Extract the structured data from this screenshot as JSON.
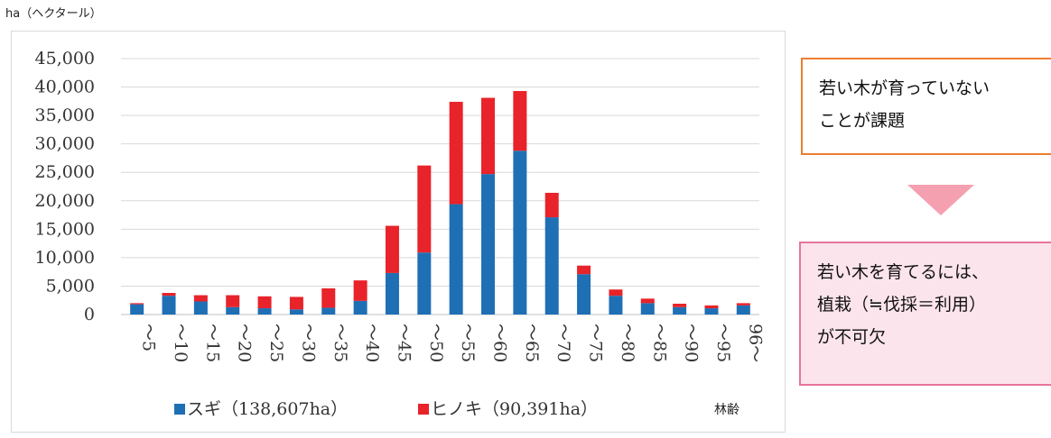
{
  "unit_label": "ha（ヘクタール）",
  "callout_top": {
    "lines": [
      "若い木が育っていない",
      "ことが課題"
    ],
    "border_color": "#ed7d31"
  },
  "callout_bottom": {
    "lines": [
      "若い木を育てるには、",
      "植栽（≒伐採＝利用）",
      "が不可欠"
    ],
    "border_color": "#e8749a",
    "background": "#fce4ec"
  },
  "arrow": {
    "icon": "down-triangle-icon",
    "color": "#f5a0b0"
  },
  "chart_data": {
    "type": "bar",
    "stacked": true,
    "categories": [
      "～5",
      "～10",
      "～15",
      "～20",
      "～25",
      "～30",
      "～35",
      "～40",
      "～45",
      "～50",
      "～55",
      "～60",
      "～65",
      "～70",
      "～75",
      "～80",
      "～85",
      "～90",
      "～95",
      "96～"
    ],
    "series": [
      {
        "name": "スギ（138,607ha）",
        "color": "#1f6fb5",
        "values": [
          1800,
          3300,
          2300,
          1300,
          1100,
          900,
          1200,
          2400,
          7300,
          10900,
          19400,
          24700,
          28800,
          17100,
          7100,
          3300,
          2000,
          1300,
          1100,
          1600
        ]
      },
      {
        "name": "ヒノキ（90,391ha）",
        "color": "#e8232a",
        "values": [
          200,
          500,
          1100,
          2100,
          2100,
          2200,
          3400,
          3600,
          8300,
          15300,
          18000,
          13400,
          10500,
          4300,
          1500,
          1100,
          800,
          600,
          500,
          400
        ]
      }
    ],
    "yticks": [
      "45,000",
      "40,000",
      "35,000",
      "30,000",
      "25,000",
      "20,000",
      "15,000",
      "10,000",
      "5,000",
      "0"
    ],
    "ylim": [
      0,
      45000
    ],
    "xlabel": "林齢",
    "grid": true,
    "legend": "bottom"
  }
}
